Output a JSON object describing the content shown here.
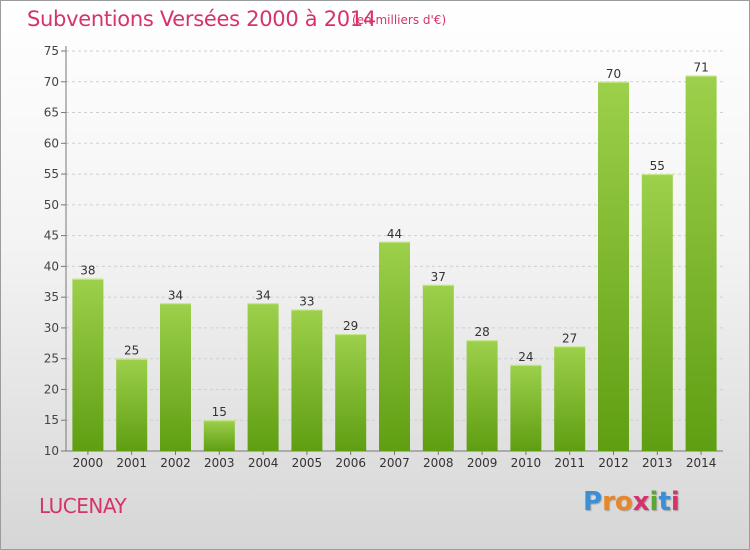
{
  "chart_data": {
    "type": "bar",
    "title": "Subventions Versées 2000 à 2014",
    "subtitle": "(en milliers d'€)",
    "categories": [
      "2000",
      "2001",
      "2002",
      "2003",
      "2004",
      "2005",
      "2006",
      "2007",
      "2008",
      "2009",
      "2010",
      "2011",
      "2012",
      "2013",
      "2014"
    ],
    "values": [
      38,
      25,
      34,
      15,
      34,
      33,
      29,
      44,
      37,
      28,
      24,
      27,
      70,
      55,
      71
    ],
    "ylim": [
      10,
      75
    ],
    "yticks": [
      10,
      15,
      20,
      25,
      30,
      35,
      40,
      45,
      50,
      55,
      60,
      65,
      70,
      75
    ],
    "grid": true,
    "bar_color_top": "#9dd04b",
    "bar_color_bottom": "#5f9e12",
    "title_color": "#d6336b"
  },
  "footer": {
    "city": "LUCENAY",
    "logo": "Proxiti"
  }
}
